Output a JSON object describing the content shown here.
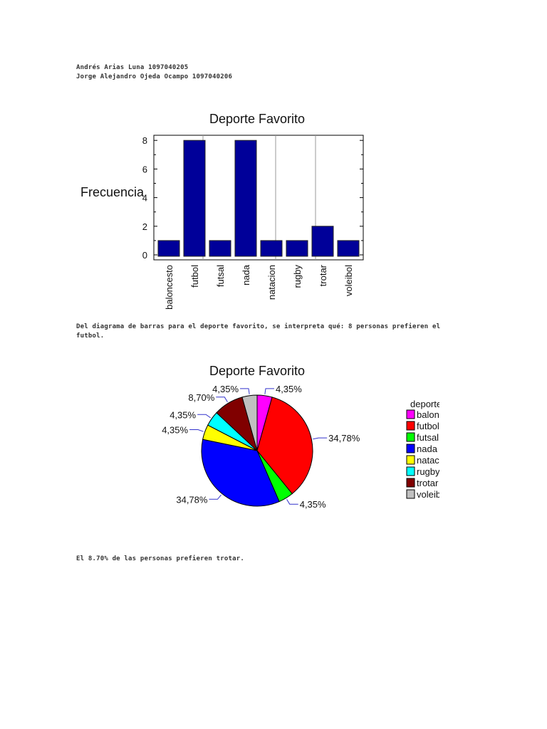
{
  "header": {
    "line1": "Andrés Arias Luna 1097040205",
    "line2": "Jorge Alejandro Ojeda Ocampo 1097040206"
  },
  "paragraph1": {
    "line1": "Del diagrama de barras para el deporte favorito, se interpreta qué: 8 personas prefieren el",
    "line2": "futbol."
  },
  "paragraph2": "El 8.70% de las personas prefieren trotar.",
  "chart_data": [
    {
      "type": "bar",
      "title": "Deporte Favorito",
      "xlabel": "",
      "ylabel": "Frecuencia",
      "categories": [
        "baloncesto",
        "futbol",
        "futsal",
        "nada",
        "natacion",
        "rugby",
        "trotar",
        "voleibol"
      ],
      "values": [
        1,
        8,
        1,
        8,
        1,
        1,
        2,
        1
      ],
      "ylim": [
        0,
        8.2
      ],
      "yticks": [
        "0",
        "2",
        "4",
        "6",
        "8"
      ],
      "color": "#000099"
    },
    {
      "type": "pie",
      "title": "Deporte Favorito",
      "legend_title": "deporte",
      "legend_position": "right",
      "categories": [
        "baloncesto",
        "futbol",
        "futsal",
        "nada",
        "natacion",
        "rugby",
        "trotar",
        "voleibol"
      ],
      "values": [
        1,
        8,
        1,
        8,
        1,
        1,
        2,
        1
      ],
      "labels": [
        "4,35%",
        "34,78%",
        "4,35%",
        "34,78%",
        "4,35%",
        "4,35%",
        "8,70%",
        "4,35%"
      ],
      "colors": [
        "#ff00ff",
        "#ff0000",
        "#00ff00",
        "#0000ff",
        "#ffff00",
        "#00ffff",
        "#800000",
        "#c0c0c0"
      ]
    }
  ]
}
